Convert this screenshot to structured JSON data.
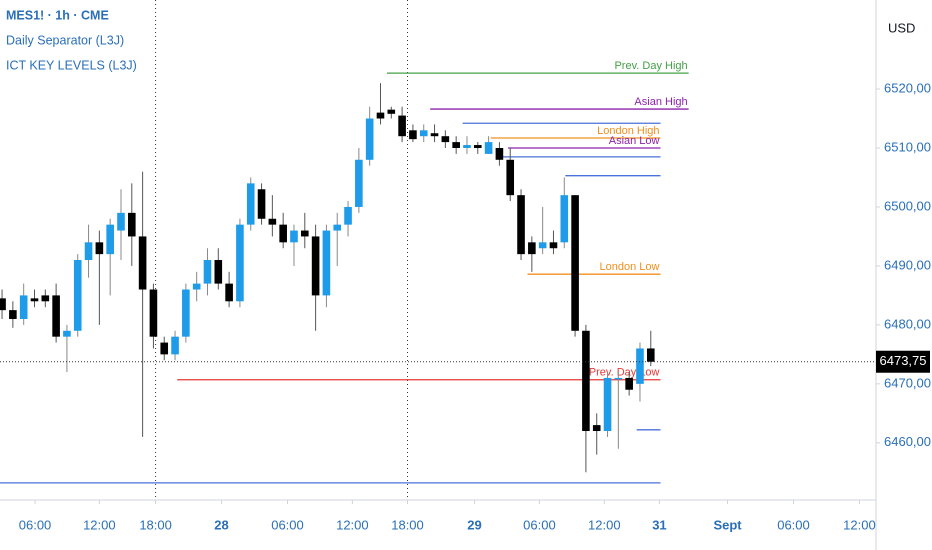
{
  "chart_data": {
    "type": "candlestick",
    "legend_lines": [
      "MES1! · 1h · CME",
      "Daily Separator (L3J)",
      "ICT KEY LEVELS (L3J)"
    ],
    "currency": "USD",
    "up_color": "#1e9be9",
    "down_color": "#000000",
    "open": [
      6484.5,
      6482.5,
      6481,
      6484.5,
      6485,
      6485,
      6478,
      6479,
      6491,
      6494,
      6492,
      6496,
      6499,
      6495,
      6486,
      6477,
      6475,
      6478,
      6486,
      6487,
      6491,
      6487,
      6484,
      6497,
      6503,
      6498,
      6497,
      6494,
      6496,
      6495,
      6485,
      6496,
      6497,
      6500,
      6508,
      6516,
      6516.5,
      6515.5,
      6513,
      6512,
      6512.5,
      6512,
      6511,
      6510,
      6510.5,
      6509,
      6510,
      6508,
      6502,
      6494,
      6493,
      6494,
      6494,
      6502,
      6479,
      6463,
      6462,
      6471,
      6471,
      6470,
      6476
    ],
    "high": [
      6486,
      6484,
      6487,
      6486,
      6486,
      6487,
      6480,
      6492,
      6497,
      6496,
      6498,
      6503,
      6504,
      6506,
      6487,
      6478,
      6479,
      6487,
      6489,
      6493,
      6493,
      6489,
      6498,
      6505,
      6504,
      6502,
      6499,
      6497,
      6499,
      6497,
      6497,
      6499,
      6501,
      6510,
      6517,
      6521,
      6517,
      6517,
      6514,
      6514,
      6514,
      6513,
      6512,
      6512,
      6511,
      6512,
      6511,
      6510,
      6503,
      6495,
      6500,
      6496,
      6505,
      6502,
      6480,
      6465,
      6472,
      6472,
      6472,
      6477,
      6479
    ],
    "low": [
      6481,
      6479.5,
      6480,
      6483,
      6483,
      6477,
      6472,
      6478,
      6488,
      6480,
      6485,
      6491,
      6490,
      6461,
      6476,
      6474,
      6474,
      6477,
      6484,
      6485,
      6486,
      6483,
      6483,
      6496,
      6497,
      6495,
      6493,
      6490,
      6493,
      6479,
      6483,
      6490,
      6495,
      6499,
      6507,
      6514,
      6515,
      6511,
      6511,
      6511,
      6511,
      6510,
      6509,
      6509,
      6509,
      6509,
      6507,
      6501,
      6491,
      6489,
      6492,
      6492,
      6493,
      6478,
      6455,
      6458,
      6461,
      6459,
      6468,
      6467,
      6473
    ],
    "close": [
      6482.5,
      6481,
      6485,
      6484,
      6484,
      6478,
      6479,
      6491,
      6494,
      6492,
      6497,
      6499,
      6495,
      6486,
      6478,
      6475,
      6478,
      6486,
      6487,
      6491,
      6487,
      6484,
      6497,
      6504,
      6498,
      6497,
      6494,
      6496,
      6495,
      6485,
      6496,
      6497,
      6500,
      6508,
      6515,
      6515,
      6515.8,
      6512,
      6511.5,
      6513,
      6512,
      6511,
      6510,
      6510.5,
      6510,
      6511,
      6508,
      6502,
      6492,
      6492,
      6494,
      6493,
      6502,
      6479,
      6462,
      6462,
      6471,
      6471,
      6469,
      6476,
      6473.75
    ],
    "xlim": [
      -0.19,
      80.83
    ],
    "ylim": [
      6450.3,
      6535.1
    ],
    "yticks": [
      {
        "value": 6460,
        "label": "6460,00"
      },
      {
        "value": 6470,
        "label": "6470,00"
      },
      {
        "value": 6480,
        "label": "6480,00"
      },
      {
        "value": 6490,
        "label": "6490,00"
      },
      {
        "value": 6500,
        "label": "6500,00"
      },
      {
        "value": 6510,
        "label": "6510,00"
      },
      {
        "value": 6520,
        "label": "6520,00"
      }
    ],
    "xticks": [
      {
        "value": 3.05,
        "label": "06:00"
      },
      {
        "value": 9,
        "label": "12:00"
      },
      {
        "value": 14.2,
        "label": "18:00"
      },
      {
        "value": 20.3,
        "label": "28"
      },
      {
        "value": 26.4,
        "label": "06:00"
      },
      {
        "value": 32.4,
        "label": "12:00"
      },
      {
        "value": 37.5,
        "label": "18:00"
      },
      {
        "value": 43.7,
        "label": "29"
      },
      {
        "value": 49.7,
        "label": "06:00"
      },
      {
        "value": 55.7,
        "label": "12:00"
      },
      {
        "value": 60.8,
        "label": "31"
      },
      {
        "value": 67.1,
        "label": "Sept"
      },
      {
        "value": 73.2,
        "label": "06:00"
      },
      {
        "value": 79.3,
        "label": "12:00"
      }
    ],
    "separators": [
      14.2,
      37.5
    ],
    "levels": [
      {
        "name": "Prev. Day High",
        "value": 6522.7,
        "color": "#43a047",
        "from": 35.6,
        "to": 63.5
      },
      {
        "name": "Asian High",
        "value": 6516.6,
        "color": "#8e24aa",
        "from": 39.6,
        "to": 63.5
      },
      {
        "value": 6514.2,
        "color": "#4a72d8",
        "from": 42.6,
        "to": 60.9
      },
      {
        "name": "London High",
        "value": 6511.7,
        "color": "#f0901e",
        "from": 45.2,
        "to": 60.9
      },
      {
        "name": "Asian Low",
        "value": 6510,
        "color": "#8e24aa",
        "from": 46.8,
        "to": 60.9
      },
      {
        "value": 6508.5,
        "color": "#4a72d8",
        "from": 46.1,
        "to": 60.9
      },
      {
        "value": 6505.3,
        "color": "#4a72d8",
        "from": 52.1,
        "to": 60.9
      },
      {
        "name": "London Low",
        "value": 6488.6,
        "color": "#f0901e",
        "from": 48.6,
        "to": 60.9
      },
      {
        "name": "Prev. Day Low",
        "value": 6470.7,
        "color": "#e53935",
        "from": 16.2,
        "to": 60.9
      },
      {
        "value": 6462.2,
        "color": "#4a72d8",
        "from": 58.7,
        "to": 60.9
      },
      {
        "value": 6453.2,
        "color": "#4a72d8",
        "from": -0.19,
        "to": 60.9
      }
    ],
    "last_price": {
      "value": 6473.75,
      "label": "6473,75"
    }
  }
}
